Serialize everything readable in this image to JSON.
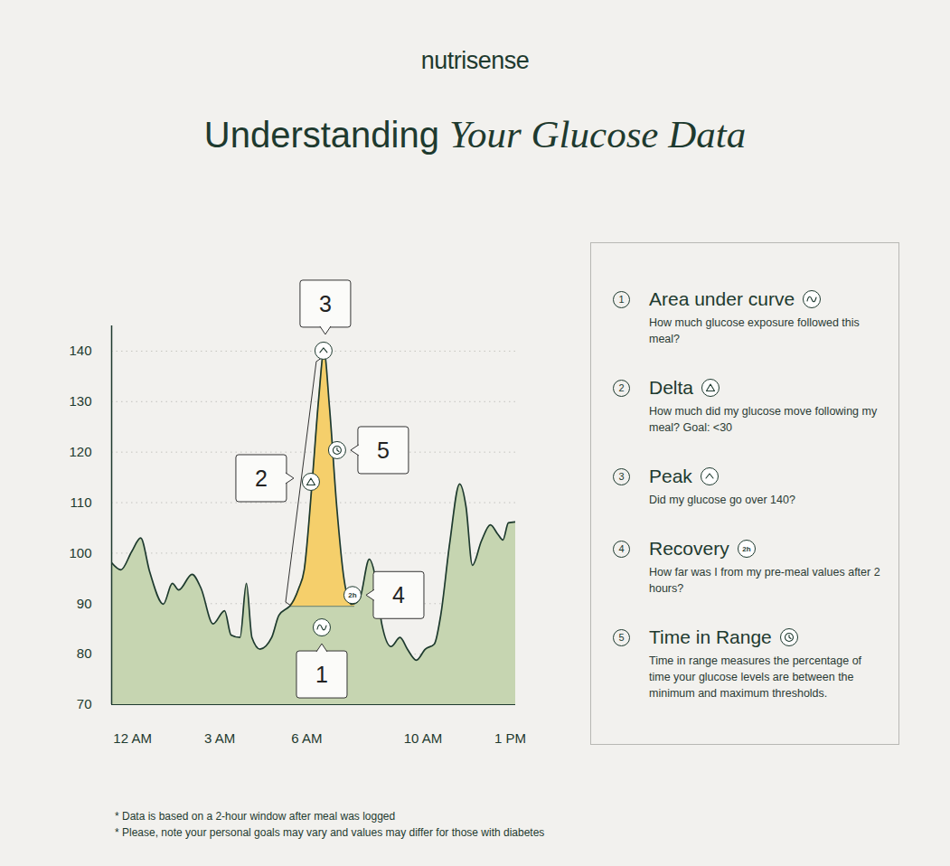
{
  "brand": "nutrisense",
  "title_lead": "Understanding",
  "title_emphasis": "Your Glucose Data",
  "chart_data": {
    "type": "area",
    "x": [
      -0.72,
      -0.4,
      -0.03,
      0.28,
      0.59,
      1.06,
      1.37,
      1.59,
      2.05,
      2.36,
      2.77,
      3.17,
      3.39,
      3.7,
      3.92,
      4.11,
      4.39,
      4.79,
      5.04,
      5.35,
      5.41,
      5.72,
      5.91,
      6.19,
      6.41,
      6.59,
      6.78,
      7.03,
      7.28,
      7.53,
      7.65,
      7.84,
      8.15,
      8.37,
      8.58,
      8.9,
      9.21,
      9.46,
      9.77,
      10.08,
      10.39,
      10.61,
      10.92,
      11.26,
      11.48,
      11.7,
      12.01,
      12.32,
      12.57,
      12.75,
      12.94,
      13.19
    ],
    "values": [
      98.1,
      96.7,
      100.3,
      103,
      96.3,
      89.9,
      94,
      92.7,
      95.8,
      93,
      86,
      88.6,
      83.8,
      83.3,
      94,
      83.3,
      81,
      83.3,
      87.7,
      89.2,
      89.5,
      93,
      96.7,
      114.6,
      130.7,
      140,
      128.9,
      109.2,
      94.9,
      89.9,
      90,
      91.3,
      98.8,
      94.9,
      86,
      81.5,
      83.3,
      81,
      78.8,
      81,
      82,
      87.7,
      102,
      113.7,
      109.2,
      97.6,
      102.4,
      105.6,
      103.8,
      102.6,
      106,
      106.2
    ],
    "color": "#c6d5b1",
    "xlim": [
      -0.72,
      13.19
    ],
    "xticks": [
      {
        "value": 0,
        "label": "12 AM"
      },
      {
        "value": 3,
        "label": "3 AM"
      },
      {
        "value": 6,
        "label": "6 AM"
      },
      {
        "value": 10,
        "label": "10 AM"
      },
      {
        "value": 13,
        "label": "1 PM"
      }
    ],
    "ylim": [
      70,
      145
    ],
    "yticks": [
      70,
      80,
      90,
      100,
      110,
      120,
      130,
      140
    ],
    "grid": true,
    "meal_window": {
      "start": 5.41,
      "end": 7.65,
      "baseline": 89.5,
      "color": "#f5cf6b"
    }
  },
  "annotations": [
    {
      "number": 1,
      "title": "Area under curve",
      "description": "How much glucose exposure followed this meal?"
    },
    {
      "number": 2,
      "title": "Delta",
      "description": "How much did my glucose move following my meal? Goal: <30"
    },
    {
      "number": 3,
      "title": "Peak",
      "description": "Did my glucose go over 140?"
    },
    {
      "number": 4,
      "title": "Recovery",
      "description": "How far was I from my pre-meal values after 2 hours?",
      "icon_text": "2h"
    },
    {
      "number": 5,
      "title": "Time in Range",
      "description": "Time in range measures the percentage of time your glucose levels are between the minimum and maximum thresholds."
    }
  ],
  "footnotes": [
    "* Data is based on a 2-hour window after meal was logged",
    "* Please, note your personal goals may vary and values may differ for those with diabetes"
  ]
}
